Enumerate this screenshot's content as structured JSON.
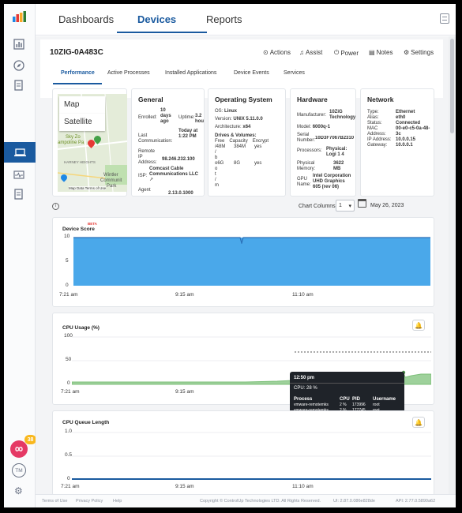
{
  "nav": {
    "tabs": [
      "Dashboards",
      "Devices",
      "Reports"
    ],
    "active": "Devices"
  },
  "device": {
    "name": "10ZIG-0A483C"
  },
  "actions": {
    "actions": "Actions",
    "assist": "Assist",
    "power": "Power",
    "notes": "Notes",
    "settings": "Settings"
  },
  "subtabs": [
    "Performance",
    "Active Processes",
    "Installed Applications",
    "Device Events",
    "Services"
  ],
  "map": {
    "map_label": "Map",
    "satellite_label": "Satellite",
    "places": [
      "Sky Zo",
      "ampoline Pa",
      "HARNEY HEIGHTS",
      "Wintler",
      "Communit",
      "Park"
    ],
    "credit": "Map Data  Terms of Use"
  },
  "general": {
    "title": "General",
    "enrolled_label": "Enrolled:",
    "enrolled_value": "10 days ago",
    "uptime_label": "Uptime:",
    "uptime_value": "3.2 hou",
    "lastcomm_label": "Last Communication:",
    "lastcomm_value": "Today at 1:22 PM",
    "remoteip_label": "Remote IP Address:",
    "remoteip_value": "98.246.232.100",
    "isp_label": "ISP:",
    "isp_value": "Comcast Cable Communications LLC",
    "agent_label": "Agent",
    "agent_value": "2.13.0.1000"
  },
  "os": {
    "title": "Operating System",
    "os_label": "OS:",
    "os_value": "Linux",
    "version_label": "Version:",
    "version_value": "UNIX 5.11.0.0",
    "arch_label": "Architecture:",
    "arch_value": "x64",
    "drives_label": "Drives & Volumes:",
    "drive_headers": [
      "Free",
      "Capacity",
      "Encrypt"
    ],
    "drive_rows": [
      [
        "/48M",
        "384M",
        "yes"
      ],
      [
        "/",
        "",
        " "
      ],
      [
        "b",
        "",
        ""
      ],
      [
        "o6G",
        "8G",
        "yes"
      ],
      [
        "o",
        "",
        ""
      ],
      [
        "t",
        "",
        ""
      ],
      [
        "/",
        "",
        ""
      ],
      [
        "m",
        "",
        ""
      ]
    ]
  },
  "hardware": {
    "title": "Hardware",
    "manufacturer_label": "Manufacturer:",
    "manufacturer_value": "10ZiG Technology",
    "model_label": "Model:",
    "model_value": "6000q-1",
    "serial_label": "Serial Number:",
    "serial_value": "10D3F7067B2310",
    "processors_label": "Processors:",
    "processors_value": "Physical: Logi 1  4",
    "memory_label": "Physical Memory:",
    "memory_value": "3622 MB",
    "gpu_label": "GPU Name:",
    "gpu_value": "Intel Corporation UHD Graphics 605 (rev 06)"
  },
  "network": {
    "title": "Network",
    "rows": [
      [
        "Type:",
        "Ethernet"
      ],
      [
        "Alias:",
        "eth0"
      ],
      [
        "Status:",
        "Connected"
      ],
      [
        "MAC Address:",
        "00-e0-c5-0a-48-3c"
      ],
      [
        "IP Address:",
        "10.0.0.15"
      ],
      [
        "Gateway:",
        "10.0.0.1"
      ]
    ]
  },
  "controls": {
    "chart_columns_label": "Chart Columns:",
    "chart_columns_value": "1",
    "date": "May 26, 2023"
  },
  "charts": {
    "device_score": {
      "title": "Device Score",
      "badge": "BETA",
      "yticks": [
        "10",
        "5",
        "0"
      ],
      "xticks": [
        "7:21 am",
        "9:15 am",
        "11:10 am"
      ]
    },
    "cpu_usage": {
      "title": "CPU Usage (%)",
      "yticks": [
        "100",
        "50",
        "0"
      ],
      "xticks": [
        "7:21 am",
        "9:15 am"
      ]
    },
    "cpu_queue": {
      "title": "CPU Queue Length",
      "yticks": [
        "1.0",
        "0.5",
        "0"
      ],
      "xticks": [
        "7:21 am",
        "9:15 am",
        "11:10 am"
      ]
    }
  },
  "tooltip": {
    "time": "12:50 pm",
    "cpu": "CPU: 28 %",
    "headers": [
      "Process",
      "CPU",
      "PID",
      "Username"
    ],
    "rows": [
      [
        "vmware-remotemks",
        "2 %",
        "173996",
        "root"
      ],
      [
        "vmware-remotemks",
        "2 %",
        "177745",
        "root"
      ]
    ]
  },
  "footer": {
    "terms": "Terms of Use",
    "privacy": "Privacy Policy",
    "help": "Help",
    "copyright": "Copyright © ControlUp Technologies LTD. All Rights Reserved.",
    "ui": "UI: 2.87.0.086e828de",
    "api": "API: 2.77.0.5890a62"
  },
  "sidebar": {
    "badge": "38",
    "avatar": "TM"
  },
  "colors": {
    "accent": "#1a5a9f",
    "score": "#4aa8ea",
    "cpu": "#7dc07a",
    "logo": [
      "#2e7d32",
      "#f9a825",
      "#e53935",
      "#1e88e5"
    ]
  }
}
